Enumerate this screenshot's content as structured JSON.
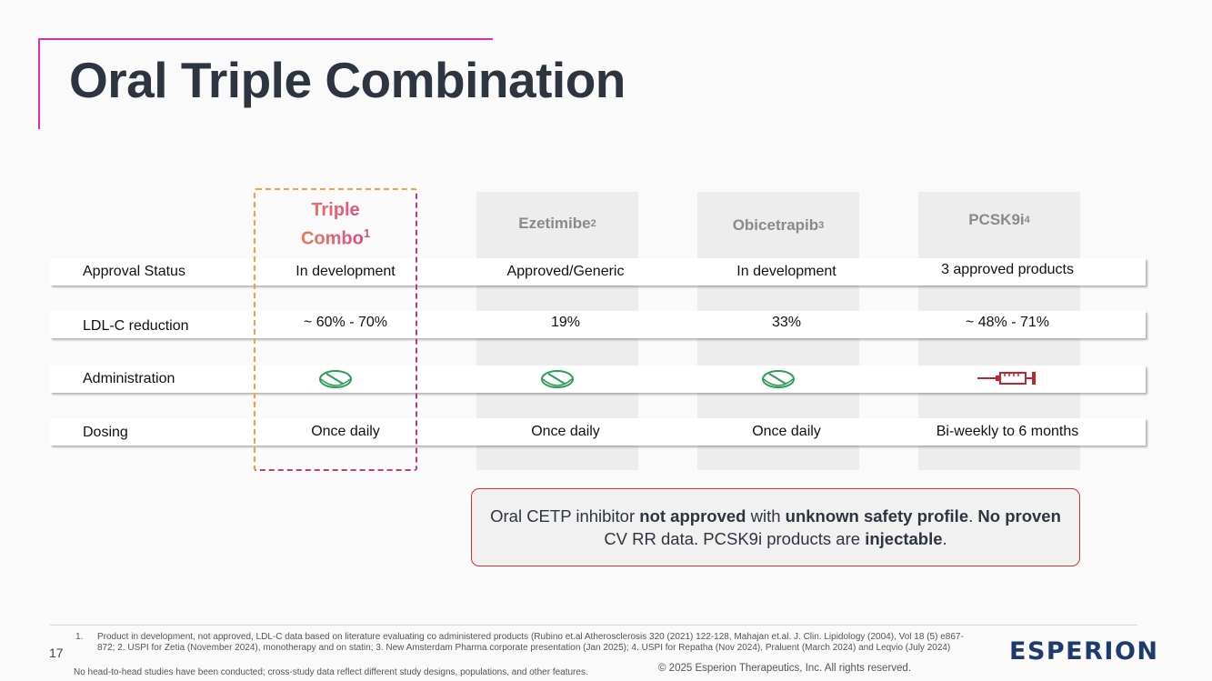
{
  "title": "Oral Triple Combination",
  "columns": [
    {
      "name": "Triple",
      "name2": "Combo",
      "sup": "1"
    },
    {
      "name": "Ezetimibe",
      "sup": "2"
    },
    {
      "name": "Obicetrapib",
      "sup": "3"
    },
    {
      "name": "PCSK9i",
      "sup": "4"
    }
  ],
  "rows": [
    {
      "label": "Approval Status",
      "values": [
        "In development",
        "Approved/Generic",
        "In development",
        "3 approved products"
      ]
    },
    {
      "label": "LDL-C reduction",
      "values": [
        "~ 60% - 70%",
        "19%",
        "33%",
        "~ 48% - 71%"
      ]
    },
    {
      "label": "Administration",
      "icons": [
        "pill-icon",
        "pill-icon",
        "pill-icon",
        "syringe-icon"
      ]
    },
    {
      "label": "Dosing",
      "values": [
        "Once daily",
        "Once daily",
        "Once daily",
        "Bi-weekly to 6 months"
      ]
    }
  ],
  "callout": {
    "t1": "Oral CETP inhibitor ",
    "b1": "not approved",
    "t2": " with ",
    "b2": "unknown safety profile",
    "t3": ". ",
    "b3": "No proven",
    "t4": " CV RR data. PCSK9i products are ",
    "b4": "injectable",
    "t5": "."
  },
  "footer": {
    "page_number": "17",
    "footnote_num": "1.",
    "footnote": "Product in development, not approved, LDL-C data based on literature evaluating co administered products (Rubino et.al Atherosclerosis 320 (2021) 122-128, Mahajan et.al. J. Clin. Lipidology (2004), Vol 18 (5) e867-872; 2. USPI for Zetia (November 2024), monotherapy and on statin; 3. New Amsterdam Pharma corporate presentation (Jan 2025); 4. USPI for Repatha (Nov 2024), Praluent (March 2024) and Leqvio (July 2024)",
    "disclaimer": "No head-to-head studies have been conducted; cross-study data reflect different study designs, populations, and other features.",
    "copyright": "© 2025 Esperion Therapeutics, Inc. All rights reserved.",
    "logo": "ESPERION"
  },
  "colors": {
    "accent": "#d12fc6",
    "pill": "#2e9e57",
    "syringe": "#c0262d",
    "callout_border": "#d0322f",
    "logo": "#1f3a6e"
  }
}
